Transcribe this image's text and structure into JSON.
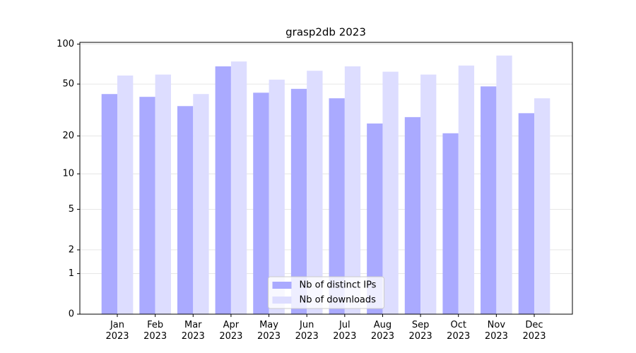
{
  "chart_data": {
    "type": "bar",
    "title": "grasp2db 2023",
    "categories": [
      "Jan\n2023",
      "Feb\n2023",
      "Mar\n2023",
      "Apr\n2023",
      "May\n2023",
      "Jun\n2023",
      "Jul\n2023",
      "Aug\n2023",
      "Sep\n2023",
      "Oct\n2023",
      "Nov\n2023",
      "Dec\n2023"
    ],
    "series": [
      {
        "name": "Nb of distinct IPs",
        "color": "#aaaaff",
        "values": [
          42,
          40,
          34,
          68,
          43,
          46,
          39,
          25,
          28,
          21,
          48,
          30
        ]
      },
      {
        "name": "Nb of downloads",
        "color": "#ddddff",
        "values": [
          58,
          59,
          42,
          74,
          54,
          63,
          68,
          62,
          59,
          69,
          82,
          39
        ]
      }
    ],
    "yscale": "log1p",
    "ylim": [
      0,
      103
    ],
    "yticks": [
      0,
      1,
      2,
      5,
      10,
      20,
      50,
      100
    ],
    "grid": true,
    "legend": "lower center"
  }
}
